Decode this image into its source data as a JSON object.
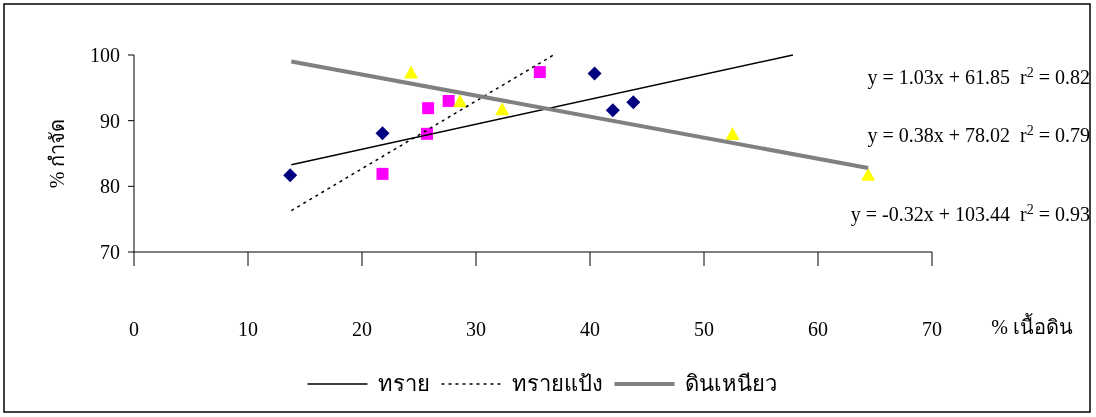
{
  "chart_data": {
    "type": "scatter",
    "ylabel": "% กำจัด",
    "xlabel": "% เนื้อดิน",
    "xlim": [
      0,
      70
    ],
    "xticks": [
      0,
      10,
      20,
      30,
      40,
      50,
      60,
      70
    ],
    "ylim": [
      70,
      100
    ],
    "yticks": [
      70,
      80,
      90,
      100
    ],
    "legend": "bottom",
    "grid": false,
    "series": [
      {
        "type": "scatter",
        "marker": "diamond",
        "color": "#000080",
        "x": [
          13.7,
          21.8,
          40.4,
          42.0,
          43.8
        ],
        "values": [
          81.7,
          88.1,
          97.2,
          91.6,
          92.8
        ]
      },
      {
        "type": "scatter",
        "marker": "square",
        "color": "#ff00ff",
        "x": [
          21.8,
          25.8,
          25.7,
          27.6,
          35.6
        ],
        "values": [
          81.9,
          91.9,
          88.0,
          93.0,
          97.4
        ]
      },
      {
        "type": "scatter",
        "marker": "triangle",
        "color": "#ffff00",
        "x": [
          24.3,
          28.6,
          32.3,
          52.5,
          64.4
        ],
        "values": [
          97.2,
          92.8,
          91.6,
          87.8,
          81.6
        ]
      },
      {
        "type": "line",
        "name": "ทราย",
        "color": "#000000",
        "line_style": "solid",
        "x": [
          13.8,
          57.8
        ],
        "values": [
          83.3,
          100
        ]
      },
      {
        "type": "line",
        "name": "ทรายแป้ง",
        "color": "#000000",
        "line_style": "dotted",
        "x": [
          13.8,
          36.8
        ],
        "values": [
          76.3,
          100
        ]
      },
      {
        "type": "line",
        "name": "ดินเหนียว",
        "color": "#808080",
        "line_style": "solid",
        "x": [
          13.8,
          64.4
        ],
        "values": [
          99.0,
          82.8
        ]
      }
    ],
    "annotations": [
      "y = 1.03x + 61.85  r$^{2}$ = 0.82",
      "y = 0.38x + 78.02  r$^{2}$ = 0.79",
      "y = -0.32x + 103.44  r$^{2}$ = 0.93"
    ]
  }
}
